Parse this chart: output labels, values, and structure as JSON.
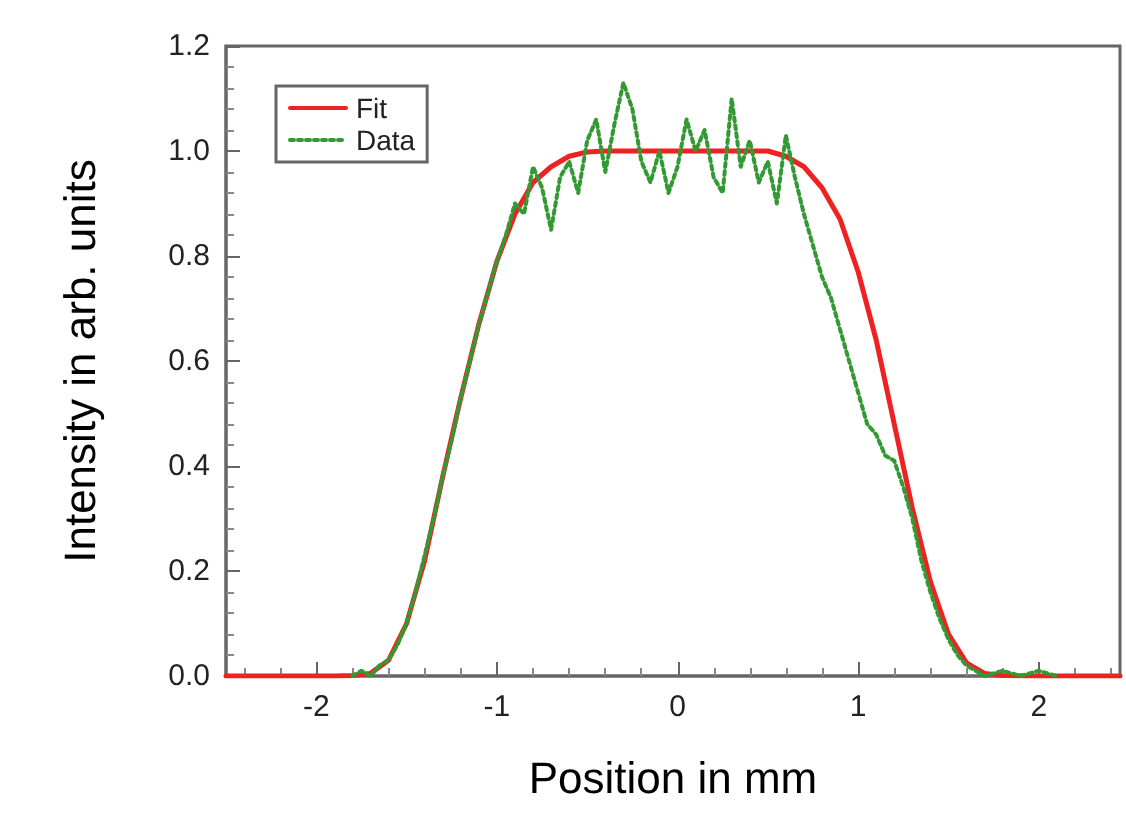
{
  "chart_data": {
    "type": "line",
    "xlabel": "Position in mm",
    "ylabel": "Intensity in arb. units",
    "xlim": [
      -2.5,
      2.45
    ],
    "ylim": [
      0,
      1.2
    ],
    "xticks": [
      -2,
      -1,
      0,
      1,
      2
    ],
    "yticks": [
      {
        "value": 0,
        "label": "0.0"
      },
      {
        "value": 0.2,
        "label": "0.2"
      },
      {
        "value": 0.4,
        "label": "0.4"
      },
      {
        "value": 0.6,
        "label": "0.6"
      },
      {
        "value": 0.8,
        "label": "0.8"
      },
      {
        "value": 1,
        "label": "1.0"
      },
      {
        "value": 1.2,
        "label": "1.2"
      }
    ],
    "grid": false,
    "legend": "top left",
    "marker": "none",
    "series": [
      {
        "name": "Fit",
        "color": "#ee2222",
        "line_style": "solid",
        "x": [
          -2.5,
          -2.2,
          -1.9,
          -1.8,
          -1.7,
          -1.6,
          -1.5,
          -1.4,
          -1.3,
          -1.2,
          -1.1,
          -1.0,
          -0.9,
          -0.8,
          -0.7,
          -0.6,
          -0.5,
          -0.4,
          0,
          0.5,
          0.6,
          0.7,
          0.8,
          0.9,
          1.0,
          1.1,
          1.2,
          1.3,
          1.4,
          1.5,
          1.6,
          1.7,
          1.8,
          2.0,
          2.45
        ],
        "values": [
          0,
          0,
          0,
          0.001,
          0.005,
          0.03,
          0.1,
          0.22,
          0.38,
          0.53,
          0.67,
          0.79,
          0.88,
          0.94,
          0.97,
          0.99,
          0.998,
          1.0,
          1.0,
          1.0,
          0.99,
          0.97,
          0.93,
          0.87,
          0.77,
          0.64,
          0.48,
          0.32,
          0.18,
          0.08,
          0.025,
          0.005,
          0.001,
          0,
          0
        ]
      },
      {
        "name": "Data",
        "color": "#339933",
        "line_style": "dotted",
        "x": [
          -1.8,
          -1.75,
          -1.7,
          -1.65,
          -1.6,
          -1.55,
          -1.5,
          -1.45,
          -1.4,
          -1.35,
          -1.3,
          -1.25,
          -1.2,
          -1.15,
          -1.1,
          -1.05,
          -1.0,
          -0.95,
          -0.9,
          -0.85,
          -0.8,
          -0.75,
          -0.7,
          -0.65,
          -0.6,
          -0.55,
          -0.5,
          -0.45,
          -0.4,
          -0.35,
          -0.3,
          -0.25,
          -0.2,
          -0.15,
          -0.1,
          -0.05,
          0,
          0.05,
          0.1,
          0.15,
          0.2,
          0.25,
          0.3,
          0.35,
          0.4,
          0.45,
          0.5,
          0.55,
          0.6,
          0.65,
          0.7,
          0.75,
          0.8,
          0.85,
          0.9,
          0.95,
          1.0,
          1.05,
          1.1,
          1.15,
          1.2,
          1.25,
          1.3,
          1.35,
          1.4,
          1.45,
          1.5,
          1.55,
          1.6,
          1.65,
          1.7,
          1.8,
          1.9,
          2.0,
          2.1
        ],
        "values": [
          0,
          0.01,
          0,
          0.02,
          0.03,
          0.06,
          0.1,
          0.16,
          0.23,
          0.3,
          0.38,
          0.45,
          0.53,
          0.6,
          0.67,
          0.73,
          0.79,
          0.84,
          0.9,
          0.88,
          0.97,
          0.93,
          0.85,
          0.95,
          0.98,
          0.92,
          1.02,
          1.06,
          0.96,
          1.05,
          1.13,
          1.08,
          0.98,
          0.94,
          1.0,
          0.92,
          0.97,
          1.06,
          1.0,
          1.04,
          0.95,
          0.92,
          1.1,
          0.97,
          1.02,
          0.94,
          0.98,
          0.9,
          1.03,
          0.95,
          0.88,
          0.82,
          0.76,
          0.72,
          0.66,
          0.6,
          0.54,
          0.48,
          0.46,
          0.42,
          0.41,
          0.36,
          0.3,
          0.22,
          0.16,
          0.11,
          0.07,
          0.04,
          0.02,
          0.01,
          0,
          0.01,
          0,
          0.01,
          0
        ]
      }
    ]
  }
}
